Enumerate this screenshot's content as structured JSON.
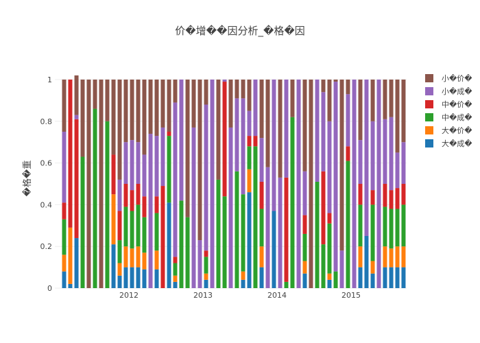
{
  "chart_data": {
    "type": "bar",
    "stacked": true,
    "title": "价�增��因分析_�格�因",
    "ylabel": "�格�重",
    "xlabel": "",
    "ylim": [
      0,
      1
    ],
    "y_ticks": [
      "0",
      "0.2",
      "0.4",
      "0.6",
      "0.8",
      "1"
    ],
    "x_ticks": [
      {
        "label": "2012",
        "x": 2012.0
      },
      {
        "label": "2013",
        "x": 2013.0
      },
      {
        "label": "2014",
        "x": 2014.0
      },
      {
        "label": "2015",
        "x": 2015.0
      }
    ],
    "legend_position": "right",
    "x": [
      2011.125,
      2011.208,
      2011.292,
      2011.375,
      2011.458,
      2011.542,
      2011.625,
      2011.708,
      2011.792,
      2011.875,
      2011.958,
      2012.042,
      2012.125,
      2012.208,
      2012.292,
      2012.375,
      2012.458,
      2012.542,
      2012.625,
      2012.708,
      2012.792,
      2012.875,
      2012.958,
      2013.042,
      2013.125,
      2013.208,
      2013.292,
      2013.375,
      2013.458,
      2013.542,
      2013.625,
      2013.708,
      2013.792,
      2013.875,
      2013.958,
      2014.042,
      2014.125,
      2014.208,
      2014.292,
      2014.375,
      2014.458,
      2014.542,
      2014.625,
      2014.708,
      2014.792,
      2014.875,
      2014.958,
      2015.042,
      2015.125,
      2015.208,
      2015.292,
      2015.375,
      2015.458,
      2015.542,
      2015.625,
      2015.708
    ],
    "series": [
      {
        "name": "大�成�",
        "color": "#1f77b4",
        "values": [
          0.08,
          0.02,
          0.24,
          0,
          0,
          0,
          0,
          0,
          0.21,
          0.06,
          0.1,
          0.1,
          0.1,
          0.09,
          0,
          0.09,
          0,
          0.41,
          0.03,
          0,
          0,
          0,
          0,
          0.04,
          0,
          0,
          0,
          0,
          0,
          0.04,
          0.46,
          0,
          0.1,
          0,
          0.37,
          0,
          0,
          0,
          0,
          0.07,
          0,
          0,
          0,
          0.04,
          0,
          0,
          0,
          0,
          0.1,
          0.25,
          0.07,
          0,
          0.1,
          0.1,
          0.1,
          0.1
        ]
      },
      {
        "name": "大�价�",
        "color": "#ff7f0e",
        "values": [
          0.08,
          0.27,
          0,
          0,
          0,
          0,
          0,
          0,
          0.24,
          0.06,
          0.1,
          0.09,
          0.1,
          0.08,
          0,
          0.09,
          0,
          0,
          0.03,
          0,
          0,
          0,
          0,
          0.03,
          0,
          0,
          0,
          0,
          0,
          0.04,
          0.11,
          0,
          0.1,
          0,
          0,
          0,
          0,
          0,
          0,
          0.06,
          0,
          0,
          0,
          0.03,
          0,
          0,
          0,
          0,
          0.1,
          0,
          0.06,
          0,
          0.1,
          0.09,
          0.1,
          0.1
        ]
      },
      {
        "name": "中�成�",
        "color": "#2ca02c",
        "values": [
          0.17,
          0,
          0,
          0.63,
          0,
          0.86,
          0,
          0.8,
          0,
          0.11,
          0.19,
          0.18,
          0.2,
          0.17,
          0,
          0.18,
          0,
          0.32,
          0.06,
          0.42,
          0.34,
          0,
          0,
          0.08,
          0,
          0.52,
          0.44,
          0,
          0.56,
          0.37,
          0.11,
          0.68,
          0.18,
          0,
          0,
          0,
          0.03,
          0.82,
          0,
          0.13,
          0,
          0.51,
          0.21,
          0.24,
          0.08,
          0,
          0.61,
          0,
          0.2,
          0,
          0.27,
          0,
          0.19,
          0.19,
          0.18,
          0.2
        ]
      },
      {
        "name": "中�价�",
        "color": "#d62728",
        "values": [
          0.08,
          0.71,
          0.57,
          0,
          0,
          0,
          0,
          0,
          0.19,
          0.14,
          0.11,
          0.1,
          0.1,
          0.1,
          0,
          0.08,
          0.49,
          0.02,
          0.03,
          0,
          0,
          0,
          0,
          0.03,
          0,
          0,
          0.55,
          0,
          0,
          0,
          0.05,
          0.05,
          0.13,
          0,
          0,
          0,
          0.5,
          0,
          0,
          0.09,
          0,
          0,
          0.35,
          0.05,
          0,
          0,
          0.07,
          0,
          0.1,
          0,
          0.07,
          0,
          0.11,
          0.09,
          0.1,
          0.1
        ]
      },
      {
        "name": "小�成�",
        "color": "#9467bd",
        "values": [
          0.34,
          0,
          0.02,
          0,
          0,
          0,
          0,
          0,
          0,
          0.15,
          0.2,
          0.24,
          0.2,
          0.2,
          0.74,
          0.29,
          0.28,
          0,
          0.74,
          0.58,
          0,
          0.77,
          0.23,
          0.7,
          1.0,
          0,
          0.01,
          0.77,
          0.35,
          0.46,
          0.12,
          0.27,
          0.21,
          0.58,
          0.63,
          0.53,
          0.47,
          0,
          1.0,
          0.21,
          0,
          0.49,
          0.38,
          0.44,
          0.91,
          0.18,
          0.25,
          1.0,
          0.21,
          0.75,
          0.33,
          1.0,
          0.31,
          0.35,
          0.17,
          0.2
        ]
      },
      {
        "name": "小�价�",
        "color": "#8c564b",
        "values": [
          0.25,
          0,
          0.19,
          0.37,
          1.0,
          0.14,
          1.0,
          0.2,
          0.36,
          0.48,
          0.3,
          0.29,
          0.3,
          0.36,
          0.26,
          0.27,
          0.23,
          0.25,
          0.11,
          0,
          0.66,
          0.23,
          0.77,
          0.12,
          0,
          0.48,
          0,
          0.23,
          0.09,
          0.09,
          0.15,
          0,
          0.28,
          0.42,
          0,
          0.47,
          0,
          0.18,
          0,
          0.44,
          1.0,
          0,
          0.06,
          0.2,
          0.01,
          0.82,
          0.07,
          0,
          0.29,
          0,
          0.2,
          0,
          0.19,
          0.18,
          0.35,
          0.3
        ]
      }
    ]
  }
}
